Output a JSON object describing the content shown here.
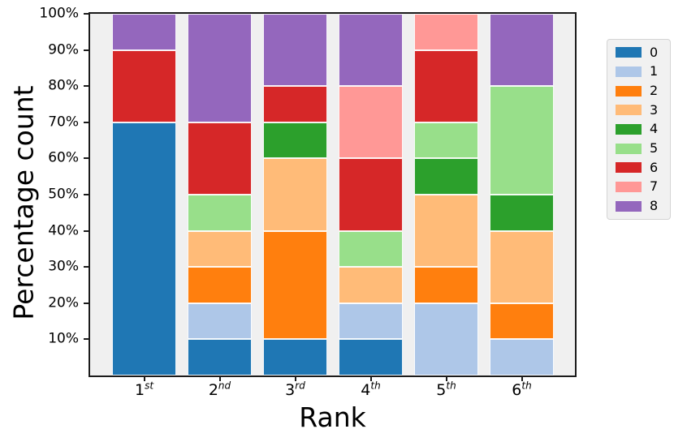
{
  "figure": {
    "background": "#ffffff",
    "plot_background": "#f0f0f0",
    "frame_color": "#1b1b1b"
  },
  "chart_data": {
    "type": "bar",
    "subtype": "stacked_percentage",
    "title": "",
    "xlabel": "Rank",
    "ylabel": "Percentage count",
    "ylim": [
      0,
      100
    ],
    "grid": false,
    "legend_position": "outside-right-top",
    "y_ticks": [
      "10%",
      "20%",
      "30%",
      "40%",
      "50%",
      "60%",
      "70%",
      "80%",
      "90%",
      "100%"
    ],
    "categories": [
      {
        "label": "1st",
        "base": "1",
        "sup": "st"
      },
      {
        "label": "2nd",
        "base": "2",
        "sup": "nd"
      },
      {
        "label": "3rd",
        "base": "3",
        "sup": "rd"
      },
      {
        "label": "4th",
        "base": "4",
        "sup": "th"
      },
      {
        "label": "5th",
        "base": "5",
        "sup": "th"
      },
      {
        "label": "6th",
        "base": "6",
        "sup": "th"
      }
    ],
    "series": [
      {
        "name": "0",
        "color": "#1f77b4",
        "values": [
          70,
          10,
          10,
          10,
          0,
          0
        ]
      },
      {
        "name": "1",
        "color": "#aec7e8",
        "values": [
          0,
          10,
          0,
          10,
          20,
          10
        ]
      },
      {
        "name": "2",
        "color": "#ff7f0e",
        "values": [
          0,
          10,
          30,
          0,
          10,
          10
        ]
      },
      {
        "name": "3",
        "color": "#ffbb78",
        "values": [
          0,
          10,
          20,
          10,
          20,
          20
        ]
      },
      {
        "name": "4",
        "color": "#2ca02c",
        "values": [
          0,
          0,
          10,
          0,
          10,
          10
        ]
      },
      {
        "name": "5",
        "color": "#98df8a",
        "values": [
          0,
          10,
          0,
          10,
          10,
          30
        ]
      },
      {
        "name": "6",
        "color": "#d62728",
        "values": [
          20,
          20,
          10,
          20,
          20,
          0
        ]
      },
      {
        "name": "7",
        "color": "#ff9896",
        "values": [
          0,
          0,
          0,
          20,
          10,
          0
        ]
      },
      {
        "name": "8",
        "color": "#9467bd",
        "values": [
          10,
          30,
          20,
          20,
          0,
          20
        ]
      }
    ],
    "legend_labels": [
      "0",
      "1",
      "2",
      "3",
      "4",
      "5",
      "6",
      "7",
      "8"
    ]
  }
}
